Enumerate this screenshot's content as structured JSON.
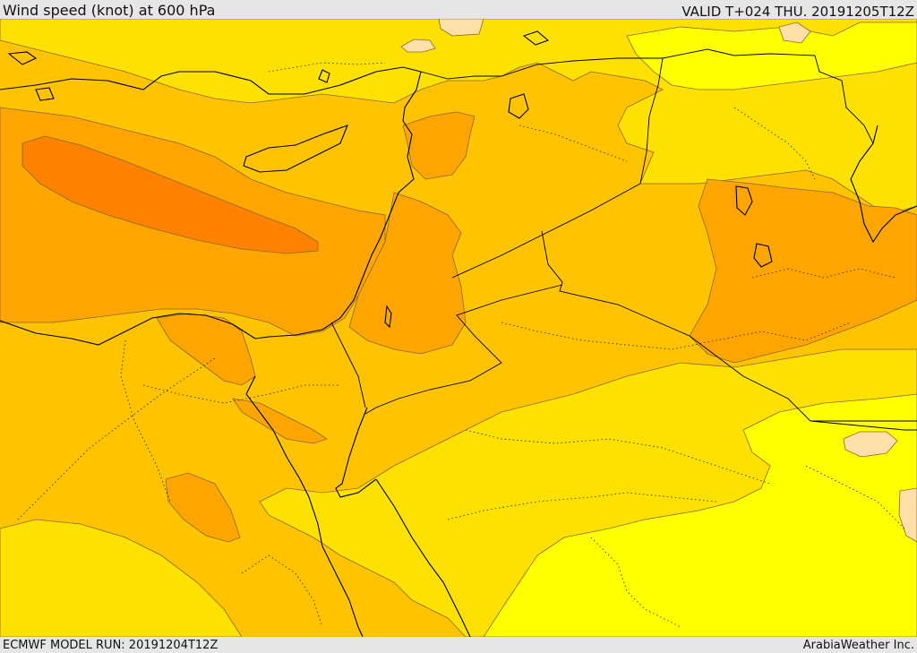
{
  "header": {
    "title": "Wind speed (knot) at 600 hPa",
    "valid": "VALID T+024 THU. 20191205T12Z"
  },
  "footer": {
    "model_run": "ECMWF MODEL RUN: 20191204T12Z",
    "brand": "ArabiaWeather Inc."
  },
  "map_colors": {
    "band_bright_yellow": "#ffff00",
    "band_yellow": "#ffe100",
    "band_yellow_orange": "#ffc300",
    "band_orange": "#ffa500",
    "band_dark_orange": "#ff8200",
    "band_pale": "#ffe0a8",
    "coastline": "#000000",
    "border_dotted": "#222222",
    "contour": "#8a6a2a"
  }
}
